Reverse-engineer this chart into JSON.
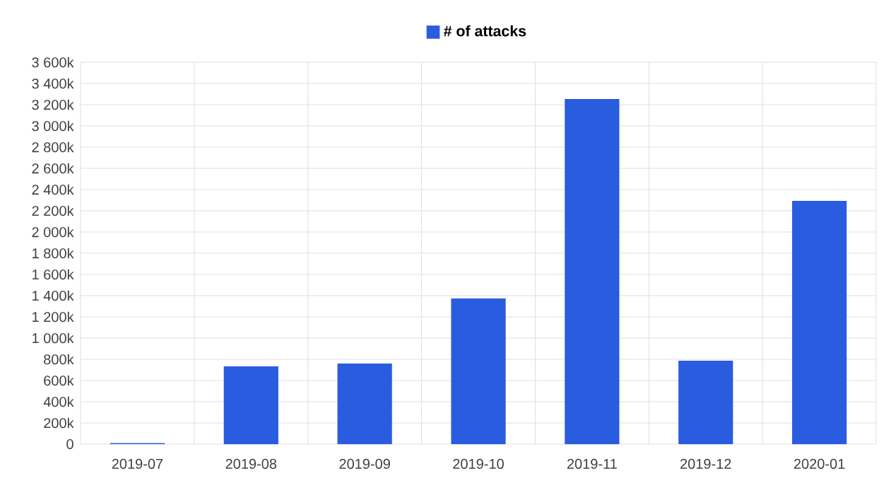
{
  "chart_data": {
    "type": "bar",
    "categories": [
      "2019-07",
      "2019-08",
      "2019-09",
      "2019-10",
      "2019-11",
      "2019-12",
      "2020-01"
    ],
    "series": [
      {
        "name": "# of attacks",
        "color": "#2a5ce0",
        "values": [
          10,
          733,
          760,
          1373,
          3253,
          787,
          2293
        ]
      }
    ],
    "ylim": [
      0,
      3600
    ],
    "yticks": [
      {
        "value": 0,
        "label": "0"
      },
      {
        "value": 200,
        "label": "200k"
      },
      {
        "value": 400,
        "label": "400k"
      },
      {
        "value": 600,
        "label": "600k"
      },
      {
        "value": 800,
        "label": "800k"
      },
      {
        "value": 1000,
        "label": "1 000k"
      },
      {
        "value": 1200,
        "label": "1 200k"
      },
      {
        "value": 1400,
        "label": "1 400k"
      },
      {
        "value": 1600,
        "label": "1 600k"
      },
      {
        "value": 1800,
        "label": "1 800k"
      },
      {
        "value": 2000,
        "label": "2 000k"
      },
      {
        "value": 2200,
        "label": "2 200k"
      },
      {
        "value": 2400,
        "label": "2 400k"
      },
      {
        "value": 2600,
        "label": "2 600k"
      },
      {
        "value": 2800,
        "label": "2 800k"
      },
      {
        "value": 3000,
        "label": "3 000k"
      },
      {
        "value": 3200,
        "label": "3 200k"
      },
      {
        "value": 3400,
        "label": "3 400k"
      },
      {
        "value": 3600,
        "label": "3 600k"
      }
    ],
    "grid": true,
    "legend": "top"
  }
}
